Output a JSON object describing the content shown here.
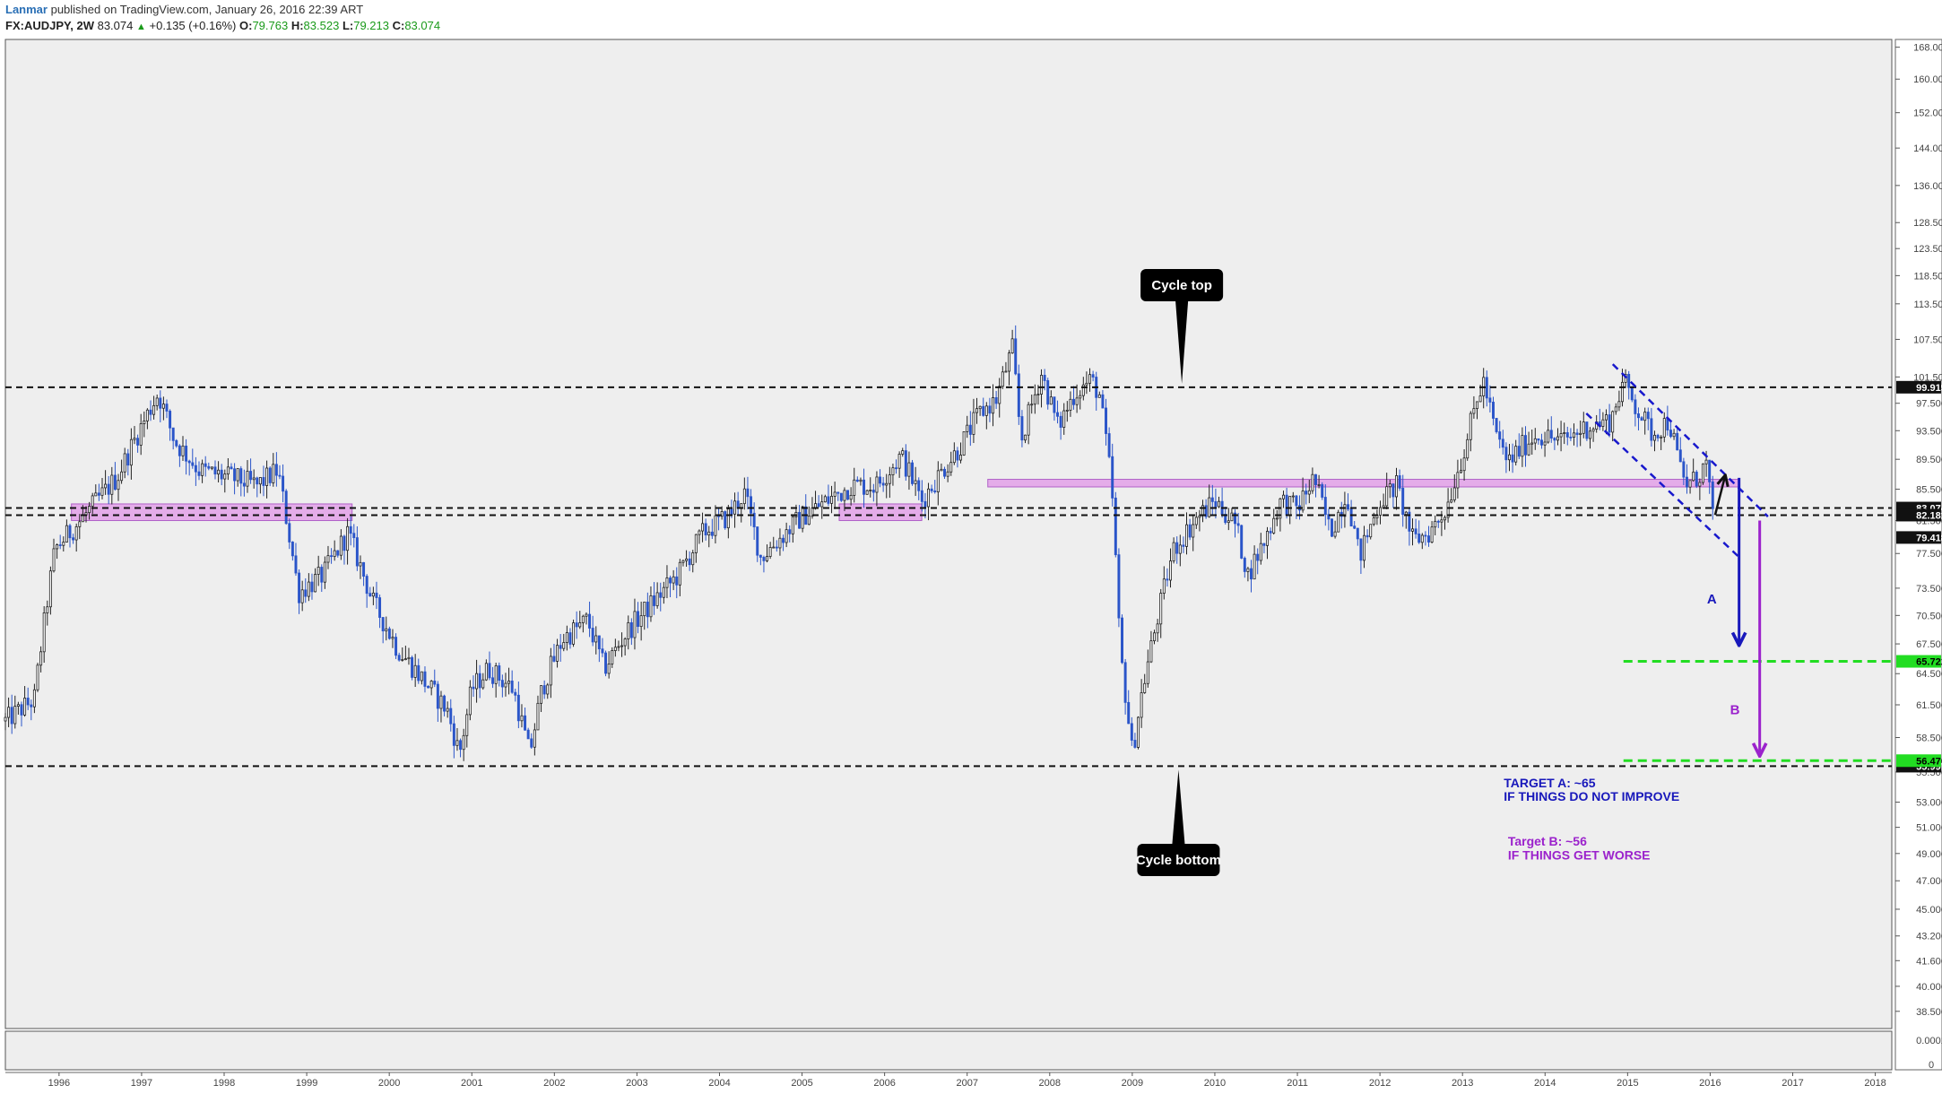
{
  "header": {
    "author": "Lanmar",
    "published": "published on TradingView.com, January 26, 2016 22:39 ART",
    "symbol": "FX:AUDJPY, 2W",
    "last": "83.074",
    "up_icon": "triangle-up-icon",
    "change": "+0.135 (+0.16%)",
    "o_label": "O:",
    "o_val": "79.763",
    "h_label": "H:",
    "h_val": "83.523",
    "l_label": "L:",
    "l_val": "79.213",
    "c_label": "C:",
    "c_val": "83.074"
  },
  "colors": {
    "background": "#eeeeee",
    "candle": "#222222",
    "candle_down": "#2b55c9",
    "zone": "#e2a0e8",
    "channel": "#1818cc",
    "target_line": "#22dd22",
    "arrow_a": "#1818bb",
    "arrow_b": "#9b22cc",
    "callout": "#000000"
  },
  "chart_data": {
    "type": "candlestick",
    "symbol": "FX:AUDJPY",
    "interval": "2W",
    "scale": "log",
    "ylim": [
      37.5,
      170
    ],
    "xlim": [
      1995.35,
      2018.2
    ],
    "x_ticks": [
      "1996",
      "1997",
      "1998",
      "1999",
      "2000",
      "2001",
      "2002",
      "2003",
      "2004",
      "2005",
      "2006",
      "2007",
      "2008",
      "2009",
      "2010",
      "2011",
      "2012",
      "2013",
      "2014",
      "2015",
      "2016",
      "2017",
      "2018"
    ],
    "y_ticks": [
      "168.000",
      "160.000",
      "152.000",
      "144.000",
      "136.000",
      "128.500",
      "123.500",
      "118.500",
      "113.500",
      "107.500",
      "101.500",
      "97.500",
      "93.500",
      "89.500",
      "85.500",
      "81.500",
      "77.500",
      "73.500",
      "70.500",
      "67.500",
      "64.500",
      "61.500",
      "58.500",
      "55.500",
      "53.000",
      "51.000",
      "49.000",
      "47.000",
      "45.000",
      "43.200",
      "41.600",
      "40.000",
      "38.500"
    ],
    "lower_pane_ticks": [
      "0.0002",
      "0"
    ],
    "price_path": [
      [
        1995.35,
        60
      ],
      [
        1995.7,
        62
      ],
      [
        1995.95,
        78
      ],
      [
        1996.3,
        82
      ],
      [
        1996.7,
        87
      ],
      [
        1997.2,
        99
      ],
      [
        1997.4,
        92
      ],
      [
        1997.7,
        88
      ],
      [
        1998.1,
        87
      ],
      [
        1998.4,
        86
      ],
      [
        1998.65,
        88
      ],
      [
        1998.9,
        73
      ],
      [
        1999.2,
        75
      ],
      [
        1999.5,
        80
      ],
      [
        1999.8,
        72
      ],
      [
        2000.1,
        67
      ],
      [
        2000.4,
        64
      ],
      [
        2000.7,
        61
      ],
      [
        2000.85,
        57
      ],
      [
        2001.0,
        63
      ],
      [
        2001.2,
        65
      ],
      [
        2001.5,
        63
      ],
      [
        2001.7,
        57
      ],
      [
        2001.85,
        63
      ],
      [
        2002.1,
        68
      ],
      [
        2002.4,
        70
      ],
      [
        2002.6,
        65
      ],
      [
        2002.9,
        69
      ],
      [
        2003.2,
        72
      ],
      [
        2003.5,
        75
      ],
      [
        2003.8,
        80
      ],
      [
        2004.1,
        82
      ],
      [
        2004.3,
        85
      ],
      [
        2004.5,
        77
      ],
      [
        2004.8,
        80
      ],
      [
        2005.0,
        82
      ],
      [
        2005.3,
        84
      ],
      [
        2005.6,
        86
      ],
      [
        2005.9,
        86
      ],
      [
        2006.2,
        90
      ],
      [
        2006.45,
        84
      ],
      [
        2006.7,
        88
      ],
      [
        2006.9,
        91
      ],
      [
        2007.15,
        96
      ],
      [
        2007.35,
        98
      ],
      [
        2007.55,
        106
      ],
      [
        2007.65,
        92
      ],
      [
        2007.9,
        102
      ],
      [
        2008.1,
        94
      ],
      [
        2008.3,
        99
      ],
      [
        2008.5,
        101
      ],
      [
        2008.6,
        99
      ],
      [
        2008.75,
        86
      ],
      [
        2008.85,
        67
      ],
      [
        2009.0,
        57
      ],
      [
        2009.1,
        62
      ],
      [
        2009.3,
        70
      ],
      [
        2009.5,
        78
      ],
      [
        2009.8,
        82
      ],
      [
        2010.0,
        84
      ],
      [
        2010.25,
        81
      ],
      [
        2010.4,
        75
      ],
      [
        2010.6,
        79
      ],
      [
        2010.8,
        84
      ],
      [
        2011.0,
        83
      ],
      [
        2011.2,
        87
      ],
      [
        2011.4,
        80
      ],
      [
        2011.6,
        85
      ],
      [
        2011.75,
        77
      ],
      [
        2012.0,
        84
      ],
      [
        2012.2,
        86
      ],
      [
        2012.4,
        79
      ],
      [
        2012.6,
        80
      ],
      [
        2012.8,
        83
      ],
      [
        2013.0,
        90
      ],
      [
        2013.25,
        101
      ],
      [
        2013.4,
        93
      ],
      [
        2013.55,
        89
      ],
      [
        2013.7,
        91
      ],
      [
        2013.9,
        93
      ],
      [
        2014.2,
        92
      ],
      [
        2014.5,
        94
      ],
      [
        2014.8,
        95
      ],
      [
        2014.95,
        101
      ],
      [
        2015.1,
        97
      ],
      [
        2015.3,
        93
      ],
      [
        2015.5,
        95
      ],
      [
        2015.6,
        90
      ],
      [
        2015.7,
        86
      ],
      [
        2015.85,
        87
      ],
      [
        2015.95,
        89
      ],
      [
        2016.0,
        85
      ],
      [
        2016.05,
        79.5
      ],
      [
        2016.07,
        83.074
      ]
    ],
    "candle_count": 530,
    "horizontal_levels": [
      {
        "price": 99.919,
        "style": "dashed",
        "label": "99.919"
      },
      {
        "price": 83.074,
        "style": "dashed",
        "label": "83.074"
      },
      {
        "price": 82.181,
        "style": "dashed",
        "label": "82.181"
      },
      {
        "price": 79.418,
        "style": "none",
        "label": "79.418"
      },
      {
        "price": 55.997,
        "style": "dashed",
        "label": "55.997"
      }
    ],
    "target_levels": [
      {
        "price": 65.722,
        "label": "65.722",
        "from_x": 2014.95
      },
      {
        "price": 56.47,
        "label": "56.470",
        "from_x": 2014.95
      }
    ],
    "zones": [
      {
        "x1": 1996.15,
        "x2": 1999.55,
        "y1": 81.5,
        "y2": 83.6
      },
      {
        "x1": 2005.45,
        "x2": 2006.45,
        "y1": 81.5,
        "y2": 83.6
      },
      {
        "x1": 2007.25,
        "x2": 2016.35,
        "y1": 85.8,
        "y2": 86.8
      }
    ],
    "channel": {
      "upper": [
        [
          2014.82,
          103.5
        ],
        [
          2016.7,
          82.0
        ]
      ],
      "lower": [
        [
          2014.5,
          96.0
        ],
        [
          2016.38,
          76.8
        ]
      ]
    },
    "annotations": {
      "cycle_top": "Cycle top",
      "cycle_bottom": "Cycle bottom",
      "label_a": "A",
      "label_b": "B",
      "target_a_line1": "TARGET A: ~65",
      "target_a_line2": "IF THINGS DO NOT IMPROVE",
      "target_b_line1": "Target B: ~56",
      "target_b_line2": "IF THINGS GET WORSE"
    }
  }
}
